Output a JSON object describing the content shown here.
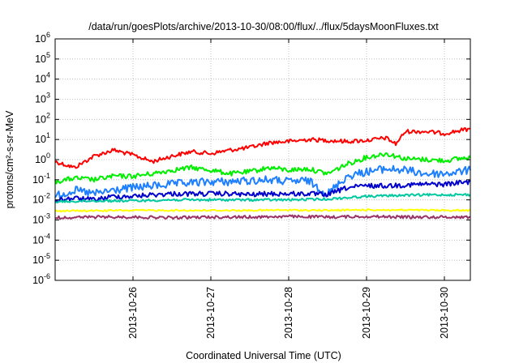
{
  "chart_data": {
    "type": "line",
    "title": "/data/run/goesPlots/archive/2013-10-30/08:00/flux/../flux/5daysMoonFluxes.txt",
    "xlabel": "Coordinated Universal Time (UTC)",
    "ylabel": "protons/cm²-s-sr-MeV",
    "yscale": "log",
    "ylim": [
      1e-06,
      1000000.0
    ],
    "y_ticks": [
      {
        "value": 1e-06,
        "base": "10",
        "exp": "-6"
      },
      {
        "value": 1e-05,
        "base": "10",
        "exp": "-5"
      },
      {
        "value": 0.0001,
        "base": "10",
        "exp": "-4"
      },
      {
        "value": 0.001,
        "base": "10",
        "exp": "-3"
      },
      {
        "value": 0.01,
        "base": "10",
        "exp": "-2"
      },
      {
        "value": 0.1,
        "base": "10",
        "exp": "-1"
      },
      {
        "value": 1,
        "base": "10",
        "exp": "0"
      },
      {
        "value": 10,
        "base": "10",
        "exp": "1"
      },
      {
        "value": 100,
        "base": "10",
        "exp": "2"
      },
      {
        "value": 1000,
        "base": "10",
        "exp": "3"
      },
      {
        "value": 10000,
        "base": "10",
        "exp": "4"
      },
      {
        "value": 100000,
        "base": "10",
        "exp": "5"
      },
      {
        "value": 1000000,
        "base": "10",
        "exp": "6"
      }
    ],
    "x_range": [
      "2013-10-25T00:00",
      "2013-10-30T08:00"
    ],
    "x_ticks": [
      "2013-10-26",
      "2013-10-27",
      "2013-10-28",
      "2013-10-29",
      "2013-10-30"
    ],
    "grid": true,
    "series": [
      {
        "color": "#ff0000",
        "x": [
          "2013-10-25T00:00",
          "2013-10-25T06:00",
          "2013-10-25T12:00",
          "2013-10-25T18:00",
          "2013-10-26T00:00",
          "2013-10-26T06:00",
          "2013-10-26T12:00",
          "2013-10-26T18:00",
          "2013-10-27T00:00",
          "2013-10-27T06:00",
          "2013-10-27T12:00",
          "2013-10-27T18:00",
          "2013-10-28T00:00",
          "2013-10-28T06:00",
          "2013-10-28T12:00",
          "2013-10-28T18:00",
          "2013-10-29T00:00",
          "2013-10-29T06:00",
          "2013-10-29T09:00",
          "2013-10-29T12:00",
          "2013-10-29T18:00",
          "2013-10-30T00:00",
          "2013-10-30T08:00"
        ],
        "y": [
          0.8,
          0.4,
          1.5,
          3,
          1.7,
          0.8,
          1.5,
          2.5,
          2,
          3,
          4,
          7,
          8,
          10,
          9,
          8,
          9,
          12,
          6,
          25,
          25,
          20,
          35
        ]
      },
      {
        "color": "#00ee00",
        "x": [
          "2013-10-25T00:00",
          "2013-10-25T06:00",
          "2013-10-25T12:00",
          "2013-10-25T18:00",
          "2013-10-26T00:00",
          "2013-10-26T06:00",
          "2013-10-26T12:00",
          "2013-10-26T18:00",
          "2013-10-27T00:00",
          "2013-10-27T06:00",
          "2013-10-27T12:00",
          "2013-10-27T18:00",
          "2013-10-28T00:00",
          "2013-10-28T06:00",
          "2013-10-28T12:00",
          "2013-10-28T18:00",
          "2013-10-29T00:00",
          "2013-10-29T06:00",
          "2013-10-29T12:00",
          "2013-10-29T18:00",
          "2013-10-30T00:00",
          "2013-10-30T08:00"
        ],
        "y": [
          0.08,
          0.12,
          0.1,
          0.15,
          0.15,
          0.2,
          0.3,
          0.4,
          0.3,
          0.2,
          0.25,
          0.4,
          0.3,
          0.35,
          0.2,
          0.6,
          1.3,
          2,
          1.1,
          1,
          0.9,
          1.3
        ]
      },
      {
        "color": "#1e7fff",
        "x": [
          "2013-10-25T00:00",
          "2013-10-25T06:00",
          "2013-10-25T12:00",
          "2013-10-25T18:00",
          "2013-10-26T00:00",
          "2013-10-26T06:00",
          "2013-10-26T12:00",
          "2013-10-26T18:00",
          "2013-10-27T00:00",
          "2013-10-27T06:00",
          "2013-10-27T12:00",
          "2013-10-27T18:00",
          "2013-10-28T00:00",
          "2013-10-28T06:00",
          "2013-10-28T12:00",
          "2013-10-28T18:00",
          "2013-10-29T00:00",
          "2013-10-29T06:00",
          "2013-10-29T12:00",
          "2013-10-29T18:00",
          "2013-10-30T00:00",
          "2013-10-30T08:00"
        ],
        "y": [
          0.015,
          0.03,
          0.02,
          0.03,
          0.04,
          0.05,
          0.06,
          0.07,
          0.08,
          0.08,
          0.09,
          0.1,
          0.08,
          0.09,
          0.02,
          0.15,
          0.25,
          0.35,
          0.3,
          0.2,
          0.2,
          0.3
        ]
      },
      {
        "color": "#0000cc",
        "x": [
          "2013-10-25T00:00",
          "2013-10-25T06:00",
          "2013-10-25T12:00",
          "2013-10-25T18:00",
          "2013-10-26T00:00",
          "2013-10-26T06:00",
          "2013-10-26T12:00",
          "2013-10-26T18:00",
          "2013-10-27T00:00",
          "2013-10-27T06:00",
          "2013-10-27T12:00",
          "2013-10-27T18:00",
          "2013-10-28T00:00",
          "2013-10-28T06:00",
          "2013-10-28T12:00",
          "2013-10-28T18:00",
          "2013-10-29T00:00",
          "2013-10-29T06:00",
          "2013-10-29T12:00",
          "2013-10-29T18:00",
          "2013-10-30T00:00",
          "2013-10-30T08:00"
        ],
        "y": [
          0.01,
          0.012,
          0.01,
          0.015,
          0.015,
          0.018,
          0.02,
          0.02,
          0.02,
          0.02,
          0.018,
          0.02,
          0.02,
          0.02,
          0.018,
          0.04,
          0.05,
          0.05,
          0.055,
          0.06,
          0.06,
          0.08
        ]
      },
      {
        "color": "#00c8a0",
        "x": [
          "2013-10-25T00:00",
          "2013-10-25T12:00",
          "2013-10-26T00:00",
          "2013-10-26T12:00",
          "2013-10-27T00:00",
          "2013-10-27T12:00",
          "2013-10-28T00:00",
          "2013-10-28T12:00",
          "2013-10-29T00:00",
          "2013-10-29T12:00",
          "2013-10-30T00:00",
          "2013-10-30T08:00"
        ],
        "y": [
          0.008,
          0.009,
          0.009,
          0.01,
          0.01,
          0.01,
          0.01,
          0.011,
          0.015,
          0.017,
          0.018,
          0.018
        ]
      },
      {
        "color": "#ffff00",
        "x": [
          "2013-10-25T00:00",
          "2013-10-25T12:00",
          "2013-10-26T00:00",
          "2013-10-26T12:00",
          "2013-10-27T00:00",
          "2013-10-27T12:00",
          "2013-10-28T00:00",
          "2013-10-28T12:00",
          "2013-10-29T00:00",
          "2013-10-29T12:00",
          "2013-10-30T00:00",
          "2013-10-30T08:00"
        ],
        "y": [
          0.0028,
          0.0029,
          0.003,
          0.003,
          0.003,
          0.003,
          0.0031,
          0.003,
          0.0032,
          0.0031,
          0.003,
          0.003
        ]
      },
      {
        "color": "#993366",
        "x": [
          "2013-10-25T00:00",
          "2013-10-25T12:00",
          "2013-10-26T00:00",
          "2013-10-26T12:00",
          "2013-10-27T00:00",
          "2013-10-27T12:00",
          "2013-10-28T00:00",
          "2013-10-28T12:00",
          "2013-10-29T00:00",
          "2013-10-29T12:00",
          "2013-10-30T00:00",
          "2013-10-30T08:00"
        ],
        "y": [
          0.0013,
          0.0014,
          0.0014,
          0.0013,
          0.0014,
          0.0014,
          0.0015,
          0.0014,
          0.0015,
          0.0014,
          0.0014,
          0.0014
        ]
      }
    ]
  }
}
